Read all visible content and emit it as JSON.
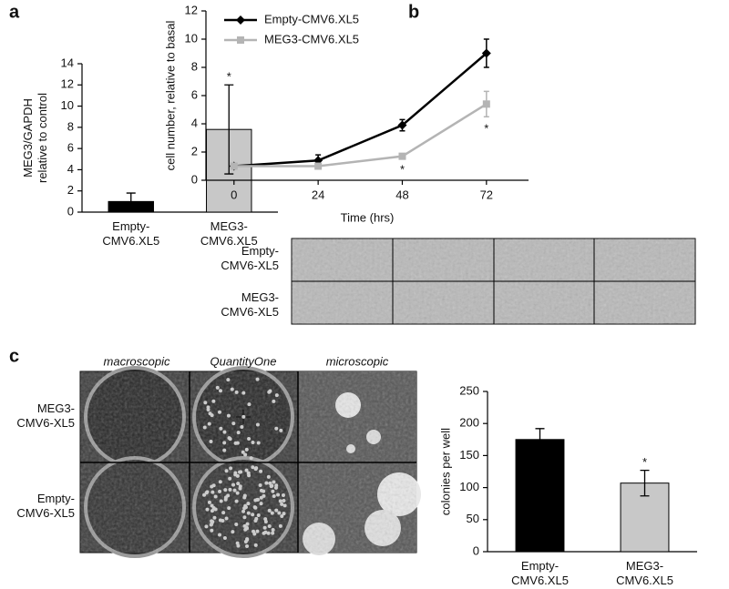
{
  "panels": {
    "a": "a",
    "b": "b",
    "c": "c"
  },
  "growth_images": {
    "rows": [
      "Empty-\nCMV6-XL5",
      "MEG3-\nCMV6-XL5"
    ]
  },
  "colony_images": {
    "columns": [
      "macroscopic",
      "QuantityOne",
      "microscopic"
    ],
    "rows": [
      "MEG3-\nCMV6-XL5",
      "Empty-\nCMV6-XL5"
    ]
  },
  "chart_data": [
    {
      "type": "bar",
      "ylabel": "MEG3/GAPDH\nrelative to control",
      "categories": [
        "Empty-\nCMV6.XL5",
        "MEG3-\nCMV6.XL5"
      ],
      "values": [
        1,
        7.8
      ],
      "errors": [
        0.8,
        4.2
      ],
      "annotations": [
        null,
        "*"
      ],
      "colors": [
        "#000000",
        "#c8c8c8"
      ],
      "ylim": [
        0,
        14
      ],
      "yticks": [
        0,
        2,
        4,
        6,
        8,
        10,
        12,
        14
      ]
    },
    {
      "type": "line",
      "xlabel": "Time (hrs)",
      "ylabel": "cell number, relative to basal",
      "x": [
        0,
        24,
        48,
        72
      ],
      "xlim": [
        -8,
        84
      ],
      "xticks": [
        0,
        24,
        48,
        72
      ],
      "ylim": [
        0,
        12
      ],
      "yticks": [
        0,
        2,
        4,
        6,
        8,
        10,
        12
      ],
      "legend": "top-left",
      "series": [
        {
          "name": "Empty-CMV6.XL5",
          "color": "#000000",
          "marker": "diamond",
          "values": [
            1,
            1.4,
            3.9,
            9
          ],
          "errors": [
            0.1,
            0.4,
            0.4,
            1.0
          ],
          "annotations": [
            null,
            null,
            null,
            null
          ]
        },
        {
          "name": "MEG3-CMV6.XL5",
          "color": "#b4b4b4",
          "marker": "square",
          "values": [
            1,
            1,
            1.7,
            5.4
          ],
          "errors": [
            0.1,
            0.1,
            0.1,
            0.9
          ],
          "annotations": [
            null,
            null,
            "*",
            "*"
          ]
        }
      ]
    },
    {
      "type": "bar",
      "ylabel": "colonies per well",
      "categories": [
        "Empty-\nCMV6.XL5",
        "MEG3-\nCMV6.XL5"
      ],
      "values": [
        175,
        107
      ],
      "errors": [
        17,
        20
      ],
      "annotations": [
        null,
        "*"
      ],
      "colors": [
        "#000000",
        "#c8c8c8"
      ],
      "ylim": [
        0,
        250
      ],
      "yticks": [
        0,
        50,
        100,
        150,
        200,
        250
      ]
    }
  ]
}
